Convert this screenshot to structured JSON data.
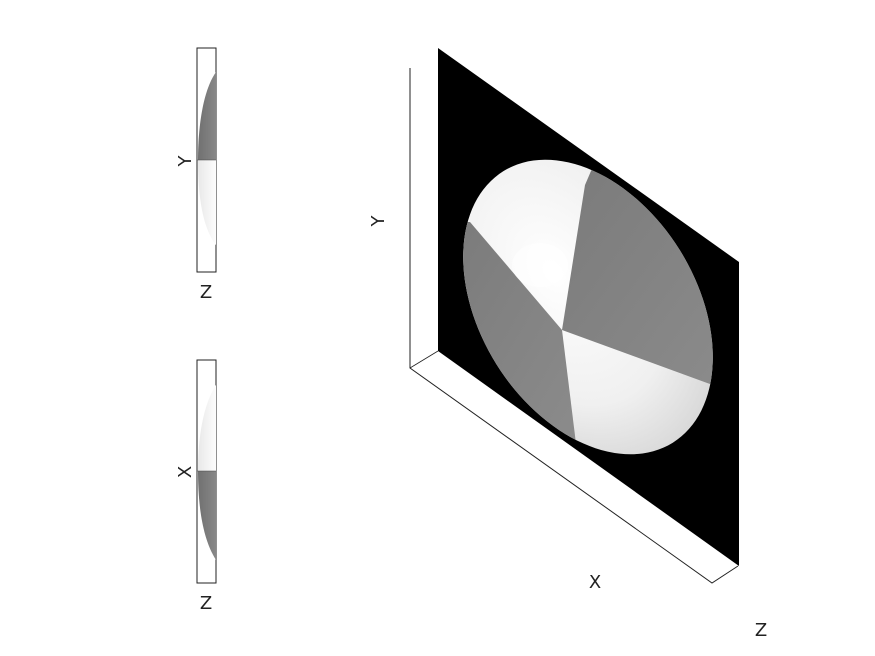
{
  "colors": {
    "background": "#ffffff",
    "panel_fill": "#000000",
    "light_shade": "#f2f2f2",
    "dark_shade": "#808080",
    "axis_line": "#333333"
  },
  "side_view_top": {
    "vertical_axis_label": "Y",
    "horizontal_axis_label": "Z"
  },
  "side_view_bottom": {
    "vertical_axis_label": "X",
    "horizontal_axis_label": "Z"
  },
  "main_view": {
    "x_axis_label": "X",
    "y_axis_label": "Y",
    "z_axis_label": "Z"
  }
}
